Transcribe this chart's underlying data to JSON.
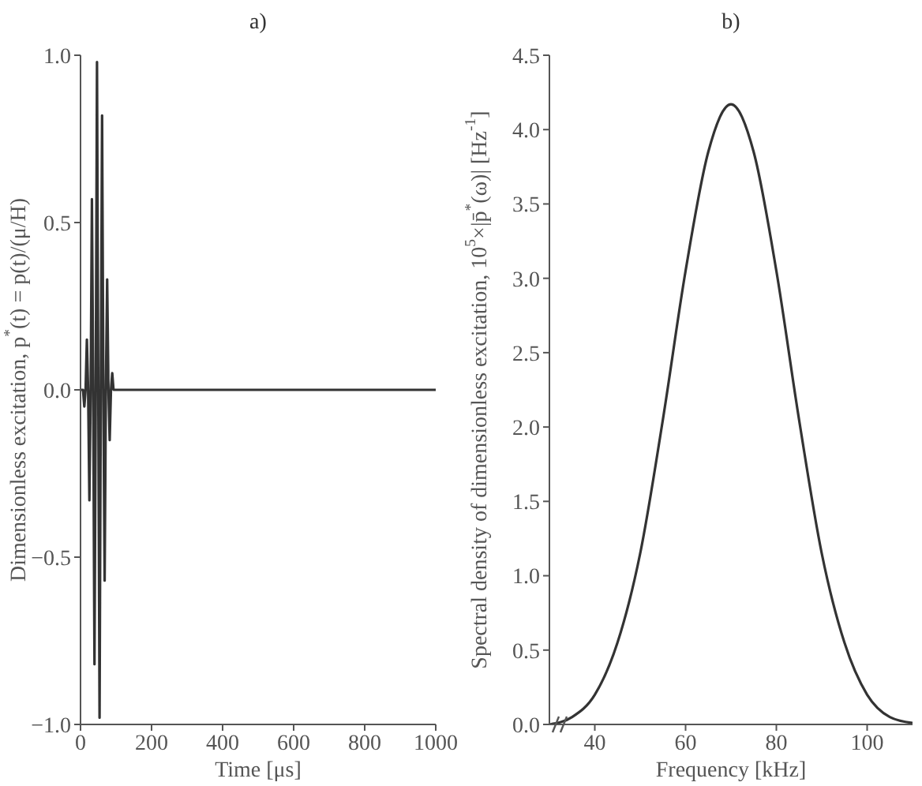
{
  "chart_data": [
    {
      "type": "line",
      "title": "a)",
      "xlabel": "Time [μs]",
      "ylabel": "Dimensionless excitation, p$^{*}$(t) = p(t)/(μ/H)",
      "color": "#333333",
      "x": [
        0,
        7,
        10.7,
        14.3,
        17.9,
        21.4,
        25,
        28.6,
        32.1,
        35.7,
        39.3,
        42.9,
        46.4,
        50,
        53.6,
        57.1,
        60.7,
        64.3,
        67.9,
        71.4,
        75,
        78.6,
        82.1,
        85.7,
        89.3,
        92.9,
        100,
        1000
      ],
      "values": [
        0,
        0,
        -0.05,
        0,
        0.15,
        0,
        -0.33,
        0,
        0.57,
        0,
        -0.82,
        0,
        0.98,
        0,
        -0.98,
        0,
        0.82,
        0,
        -0.57,
        0,
        0.33,
        0,
        -0.15,
        0,
        0.05,
        0,
        0,
        0
      ],
      "xlim": [
        0,
        1000
      ],
      "xticks": [
        0,
        200,
        400,
        600,
        800,
        1000
      ],
      "ylim": [
        -1,
        1
      ],
      "yticks": [
        {
          "value": -1,
          "label": "−1.0"
        },
        {
          "value": -0.5,
          "label": "−0.5"
        },
        {
          "value": 0,
          "label": "0.0"
        },
        {
          "value": 0.5,
          "label": "0.5"
        },
        {
          "value": 1,
          "label": "1.0"
        }
      ]
    },
    {
      "type": "line",
      "title": "b)",
      "xlabel": "Frequency [kHz]",
      "ylabel": "Spectral density of dimensionless excitation, 10$^{5}$×|p̄$^{*}$(ω)| [Hz$^{-1}$]",
      "color": "#333333",
      "x": [
        30,
        35,
        40,
        45,
        50,
        55,
        60,
        65,
        70,
        75,
        80,
        85,
        90,
        95,
        100,
        105,
        110
      ],
      "values": [
        0,
        0.05,
        0.2,
        0.55,
        1.15,
        2.05,
        3.05,
        3.85,
        4.17,
        3.85,
        3.05,
        2.05,
        1.15,
        0.55,
        0.2,
        0.05,
        0.01
      ],
      "xlim": [
        30,
        110
      ],
      "xticks": [
        40,
        60,
        80,
        100
      ],
      "ylim": [
        0,
        4.5
      ],
      "yticks": [
        {
          "value": 0,
          "label": "0.0"
        },
        {
          "value": 0.5,
          "label": "0.5"
        },
        {
          "value": 1,
          "label": "1.0"
        },
        {
          "value": 1.5,
          "label": "1.5"
        },
        {
          "value": 2,
          "label": "2.0"
        },
        {
          "value": 2.5,
          "label": "2.5"
        },
        {
          "value": 3,
          "label": "3.0"
        },
        {
          "value": 3.5,
          "label": "3.5"
        },
        {
          "value": 4,
          "label": "4.0"
        },
        {
          "value": 4.5,
          "label": "4.5"
        }
      ]
    }
  ]
}
